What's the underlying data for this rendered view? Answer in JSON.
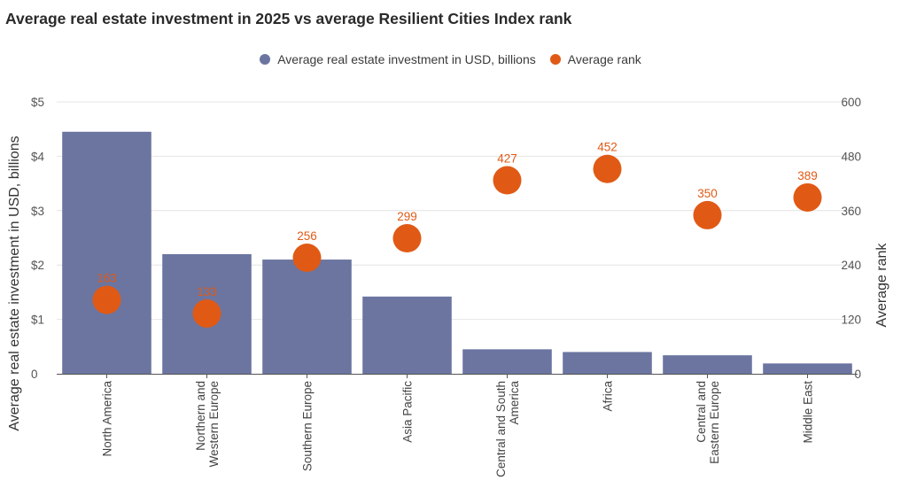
{
  "chart_data": {
    "type": "bar",
    "title": "Average real estate investment in 2025 vs average Resilient Cities Index rank",
    "categories": [
      [
        "North America"
      ],
      [
        "Northern and",
        "Western Europe"
      ],
      [
        "Southern Europe"
      ],
      [
        "Asia Pacific"
      ],
      [
        "Central and South",
        "America"
      ],
      [
        "Africa"
      ],
      [
        "Central and",
        "Eastern Europe"
      ],
      [
        "Middle East"
      ]
    ],
    "series": [
      {
        "name": "Average real estate investment in USD, billions",
        "type": "bar",
        "axis": "left",
        "color": "#6b75a0",
        "values": [
          4.45,
          2.2,
          2.1,
          1.42,
          0.45,
          0.4,
          0.34,
          0.19
        ]
      },
      {
        "name": "Average rank",
        "type": "scatter",
        "axis": "right",
        "color": "#e05a16",
        "values": [
          163,
          133,
          256,
          299,
          427,
          452,
          350,
          389
        ],
        "labels": [
          "163",
          "133",
          "256",
          "299",
          "427",
          "452",
          "350",
          "389"
        ]
      }
    ],
    "ylabel": "Average real estate investment in USD, billions",
    "ylabel_right": "Average rank",
    "ylim": [
      0,
      5
    ],
    "ylim_right": [
      0,
      600
    ],
    "yticks": [
      "0",
      "$1",
      "$2",
      "$3",
      "$4",
      "$5"
    ],
    "yticks_right": [
      "0",
      "120",
      "240",
      "360",
      "480",
      "600"
    ],
    "grid": true,
    "legend_position": "top-center"
  }
}
